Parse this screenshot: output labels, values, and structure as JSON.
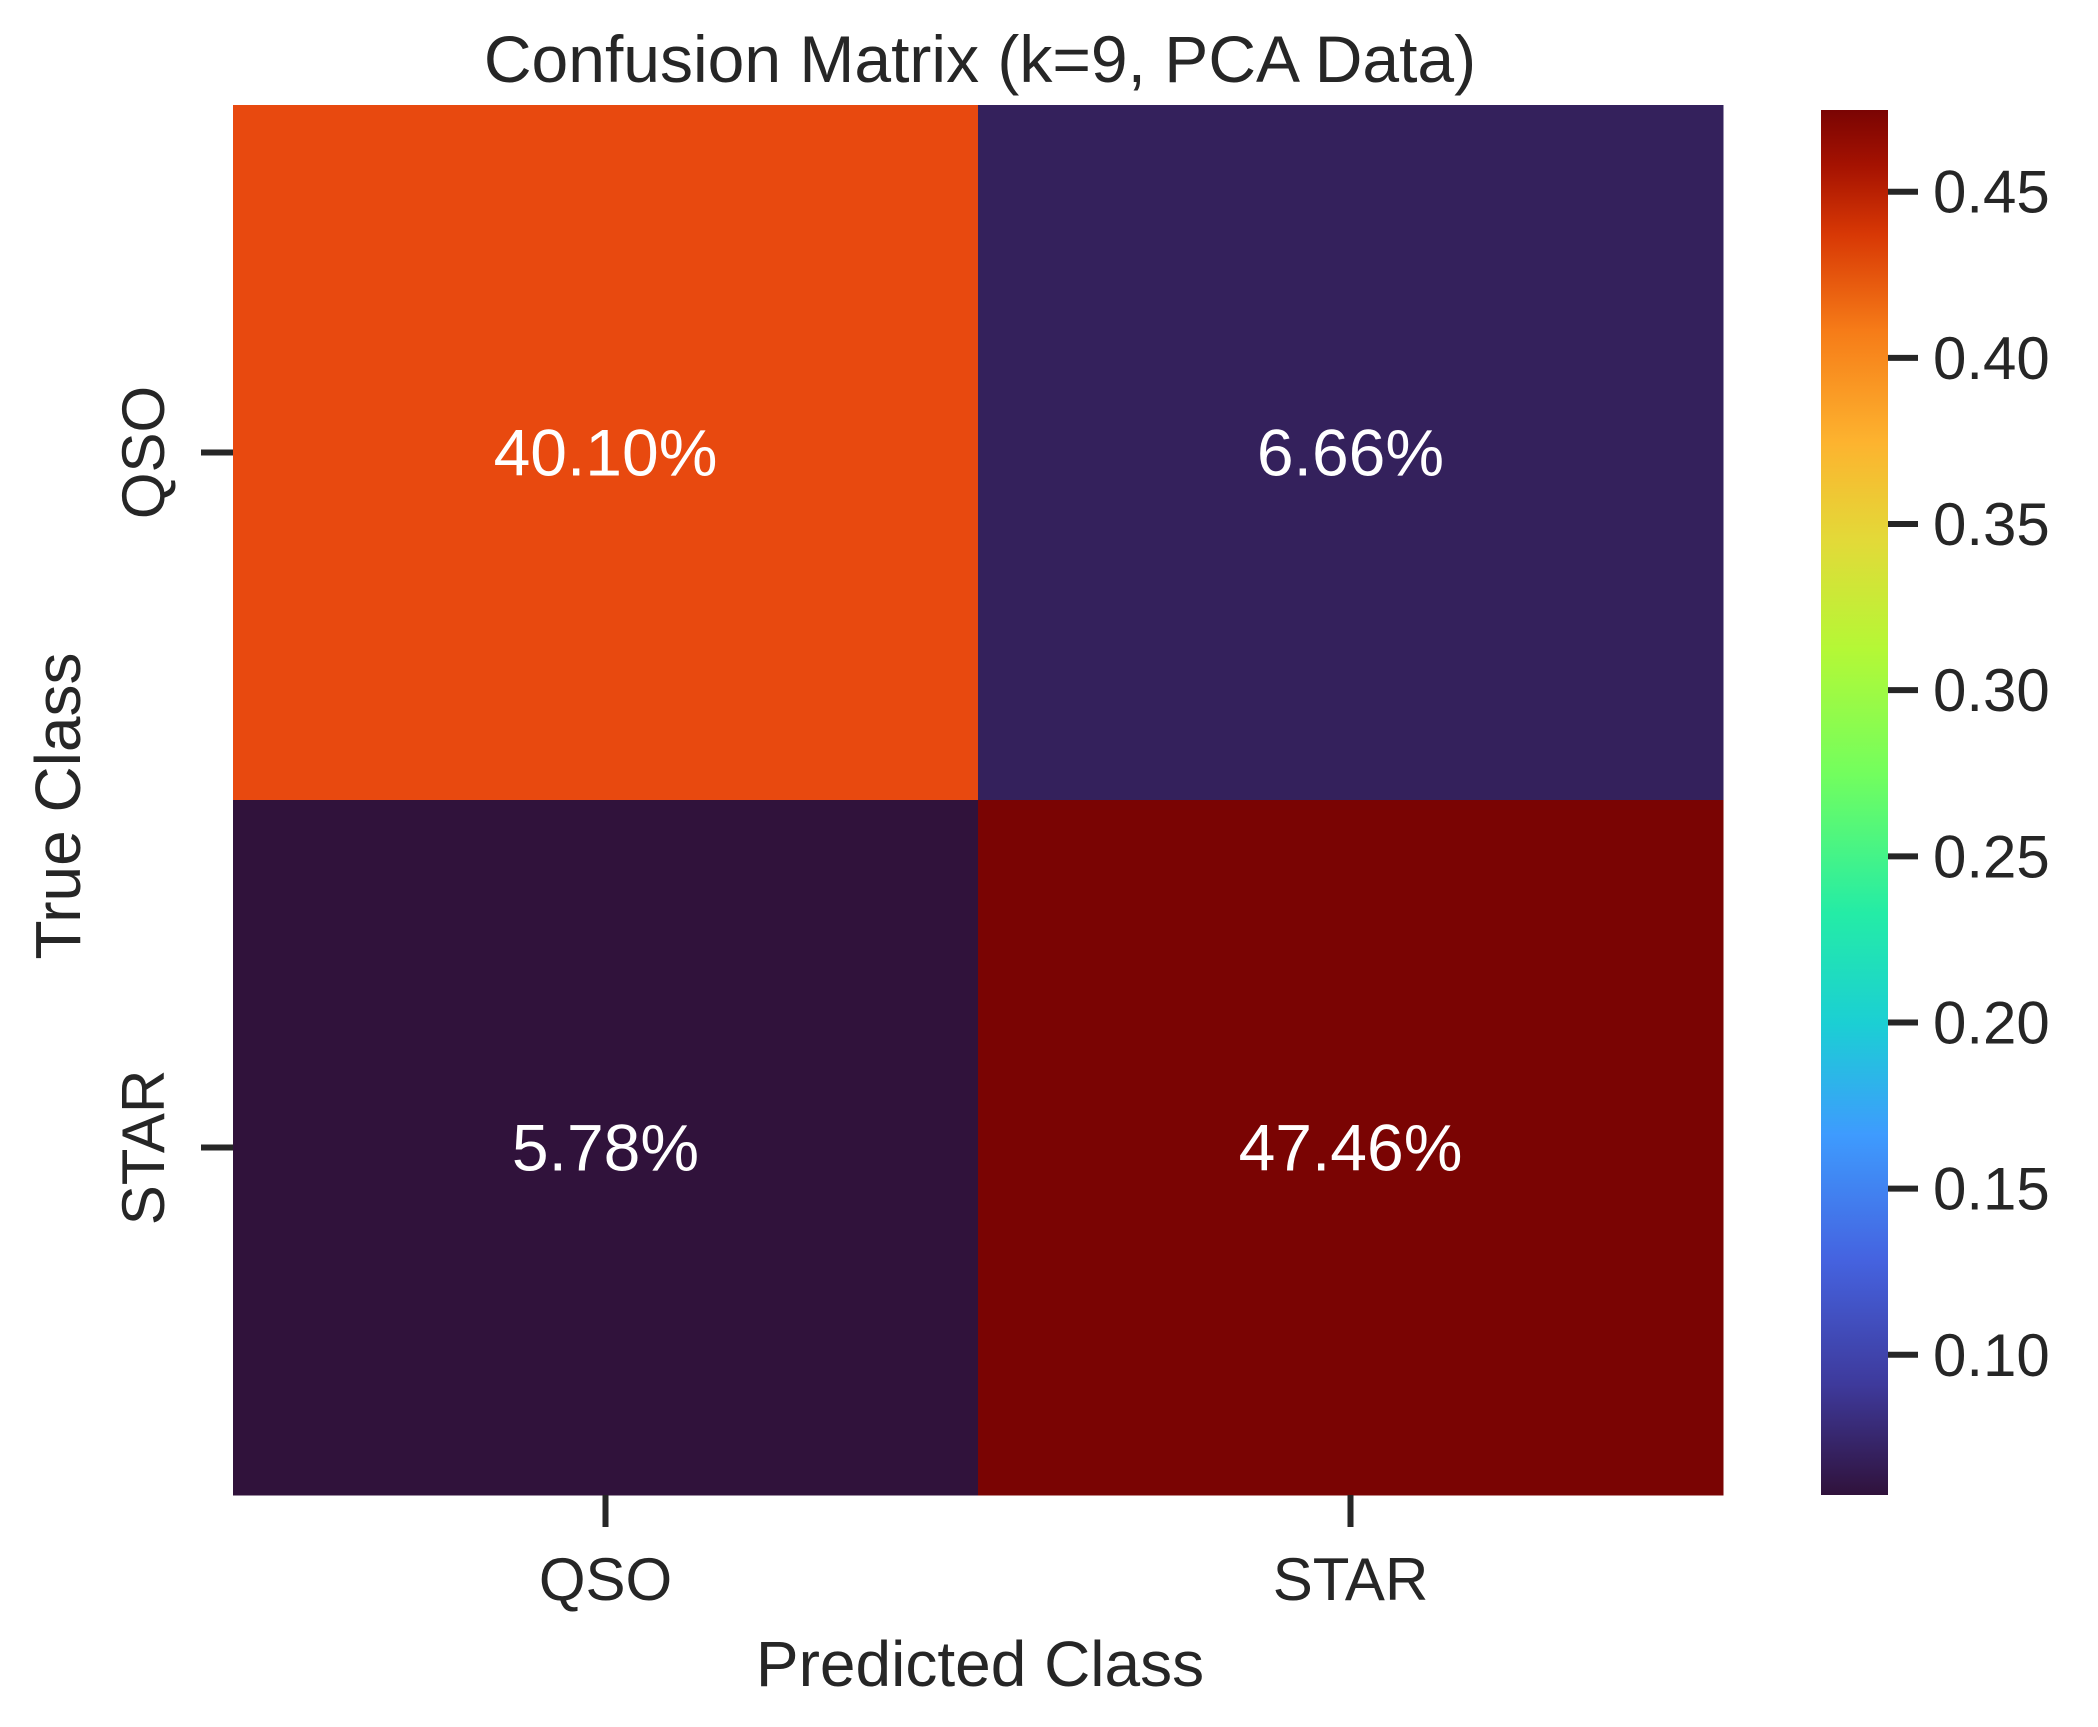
{
  "chart_data": {
    "type": "heatmap",
    "title": "Confusion Matrix (k=9, PCA Data)",
    "xlabel": "Predicted Class",
    "ylabel": "True Class",
    "x_categories": [
      "QSO",
      "STAR"
    ],
    "y_categories": [
      "QSO",
      "STAR"
    ],
    "values": [
      [
        0.401,
        0.0666
      ],
      [
        0.0578,
        0.4746
      ]
    ],
    "annotations": [
      [
        "40.10%",
        "6.66%"
      ],
      [
        "5.78%",
        "47.46%"
      ]
    ],
    "colormap": "turbo",
    "colorbar": {
      "range": [
        0.0578,
        0.4746
      ],
      "ticks": [
        0.1,
        0.15,
        0.2,
        0.25,
        0.3,
        0.35,
        0.4,
        0.45
      ],
      "tick_labels": [
        "0.10",
        "0.15",
        "0.20",
        "0.25",
        "0.30",
        "0.35",
        "0.40",
        "0.45"
      ]
    },
    "colors": {
      "qso_qso": "#e8490f",
      "qso_star": "#34215c",
      "star_qso": "#30123b",
      "star_star": "#7a0403"
    },
    "grid": false
  }
}
